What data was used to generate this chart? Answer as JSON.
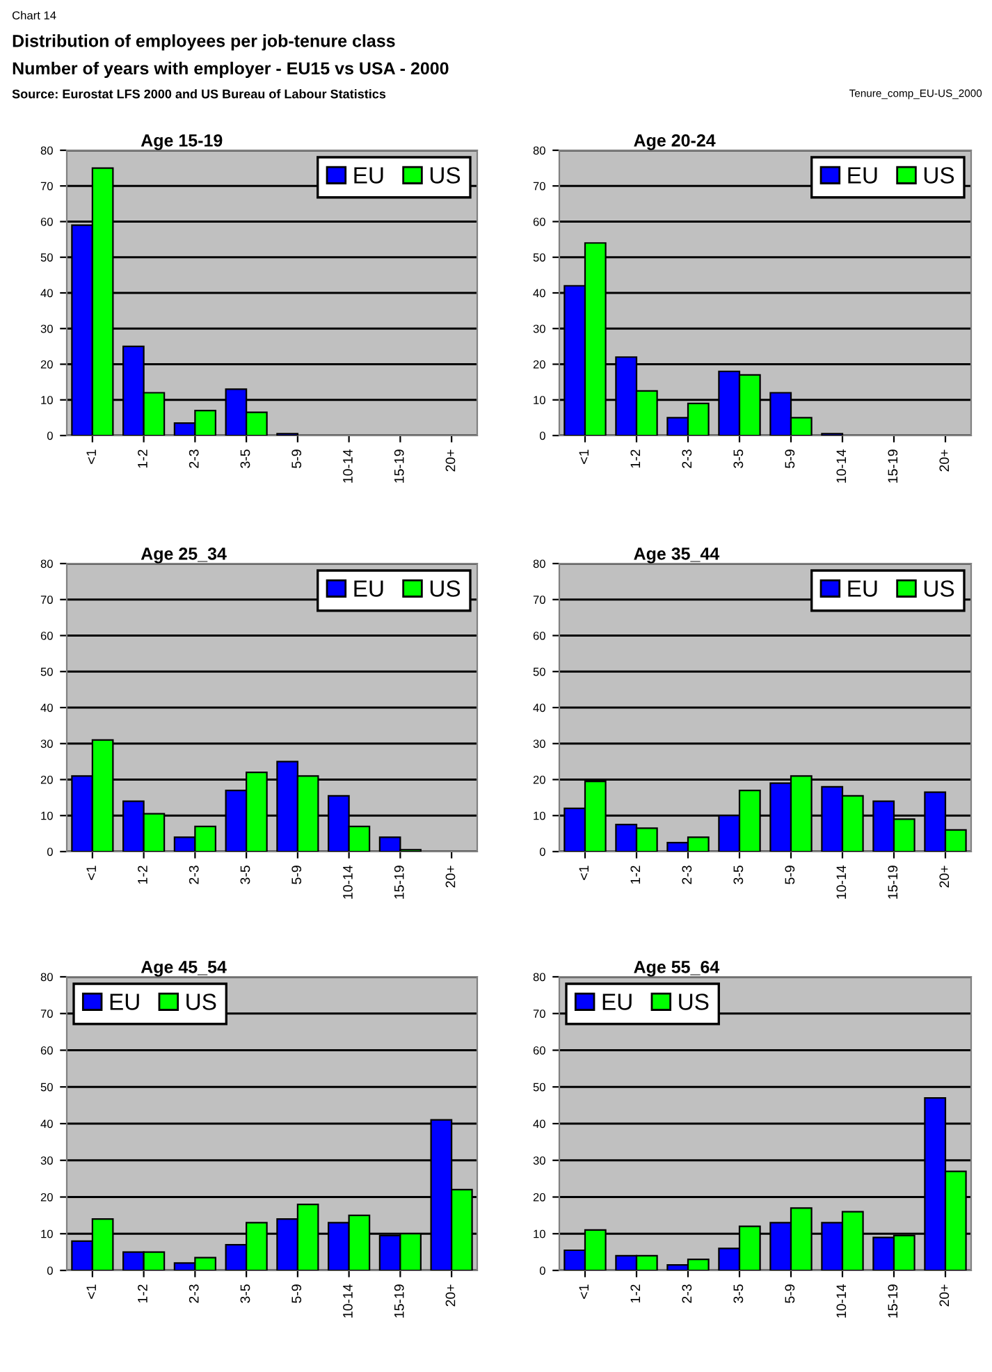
{
  "chart_data": [
    {
      "type": "bar",
      "title": "Age 15-19",
      "subtitle": "Distribution of employees per job-tenure class",
      "annotations": [
        "Chart 14",
        "Number of years with employer - EU15 vs USA - 2000",
        "Source: Eurostat LFS 2000 and US Bureau of Labour Statistics",
        "Tenure_comp_EU-US_2000"
      ],
      "categories": [
        "<1",
        "1-2",
        "2-3",
        "3-5",
        "5-9",
        "10-14",
        "15-19",
        "20+"
      ],
      "ylim": [
        0,
        80
      ],
      "yticks": [
        0,
        10,
        20,
        30,
        40,
        50,
        60,
        70,
        80
      ],
      "grid": "y",
      "legend": "top right",
      "series": [
        {
          "name": "EU",
          "color": "#0000ff",
          "values": [
            59,
            25,
            3.5,
            13,
            0.5,
            null,
            null,
            null
          ]
        },
        {
          "name": "US",
          "color": "#00ff00",
          "values": [
            75,
            12,
            7,
            6.5,
            null,
            null,
            null,
            null
          ]
        }
      ]
    },
    {
      "type": "bar",
      "title": "Age 20-24",
      "categories": [
        "<1",
        "1-2",
        "2-3",
        "3-5",
        "5-9",
        "10-14",
        "15-19",
        "20+"
      ],
      "ylim": [
        0,
        80
      ],
      "yticks": [
        0,
        10,
        20,
        30,
        40,
        50,
        60,
        70,
        80
      ],
      "grid": "y",
      "legend": "top right",
      "series": [
        {
          "name": "EU",
          "color": "#0000ff",
          "values": [
            42,
            22,
            5,
            18,
            12,
            0.5,
            null,
            null
          ]
        },
        {
          "name": "US",
          "color": "#00ff00",
          "values": [
            54,
            12.5,
            9,
            17,
            5,
            null,
            null,
            null
          ]
        }
      ]
    },
    {
      "type": "bar",
      "title": "Age 25_34",
      "categories": [
        "<1",
        "1-2",
        "2-3",
        "3-5",
        "5-9",
        "10-14",
        "15-19",
        "20+"
      ],
      "ylim": [
        0,
        80
      ],
      "yticks": [
        0,
        10,
        20,
        30,
        40,
        50,
        60,
        70,
        80
      ],
      "grid": "y",
      "legend": "top right",
      "series": [
        {
          "name": "EU",
          "color": "#0000ff",
          "values": [
            21,
            14,
            4,
            17,
            25,
            15.5,
            4,
            null
          ]
        },
        {
          "name": "US",
          "color": "#00ff00",
          "values": [
            31,
            10.5,
            7,
            22,
            21,
            7,
            0.5,
            null
          ]
        }
      ]
    },
    {
      "type": "bar",
      "title": "Age 35_44",
      "categories": [
        "<1",
        "1-2",
        "2-3",
        "3-5",
        "5-9",
        "10-14",
        "15-19",
        "20+"
      ],
      "ylim": [
        0,
        80
      ],
      "yticks": [
        0,
        10,
        20,
        30,
        40,
        50,
        60,
        70,
        80
      ],
      "grid": "y",
      "legend": "top right",
      "series": [
        {
          "name": "EU",
          "color": "#0000ff",
          "values": [
            12,
            7.5,
            2.5,
            10,
            19,
            18,
            14,
            16.5
          ]
        },
        {
          "name": "US",
          "color": "#00ff00",
          "values": [
            19.5,
            6.5,
            4,
            17,
            21,
            15.5,
            9,
            6
          ]
        }
      ]
    },
    {
      "type": "bar",
      "title": "Age 45_54",
      "categories": [
        "<1",
        "1-2",
        "2-3",
        "3-5",
        "5-9",
        "10-14",
        "15-19",
        "20+"
      ],
      "ylim": [
        0,
        80
      ],
      "yticks": [
        0,
        10,
        20,
        30,
        40,
        50,
        60,
        70,
        80
      ],
      "grid": "y",
      "legend": "top left",
      "series": [
        {
          "name": "EU",
          "color": "#0000ff",
          "values": [
            8,
            5,
            2,
            7,
            14,
            13,
            9.5,
            41
          ]
        },
        {
          "name": "US",
          "color": "#00ff00",
          "values": [
            14,
            5,
            3.5,
            13,
            18,
            15,
            10,
            22
          ]
        }
      ]
    },
    {
      "type": "bar",
      "title": "Age 55_64",
      "categories": [
        "<1",
        "1-2",
        "2-3",
        "3-5",
        "5-9",
        "10-14",
        "15-19",
        "20+"
      ],
      "ylim": [
        0,
        80
      ],
      "yticks": [
        0,
        10,
        20,
        30,
        40,
        50,
        60,
        70,
        80
      ],
      "grid": "y",
      "legend": "top left",
      "series": [
        {
          "name": "EU",
          "color": "#0000ff",
          "values": [
            5.5,
            4,
            1.5,
            6,
            13,
            13,
            9,
            47
          ]
        },
        {
          "name": "US",
          "color": "#00ff00",
          "values": [
            11,
            4,
            3,
            12,
            17,
            16,
            9.5,
            27
          ]
        }
      ]
    }
  ]
}
